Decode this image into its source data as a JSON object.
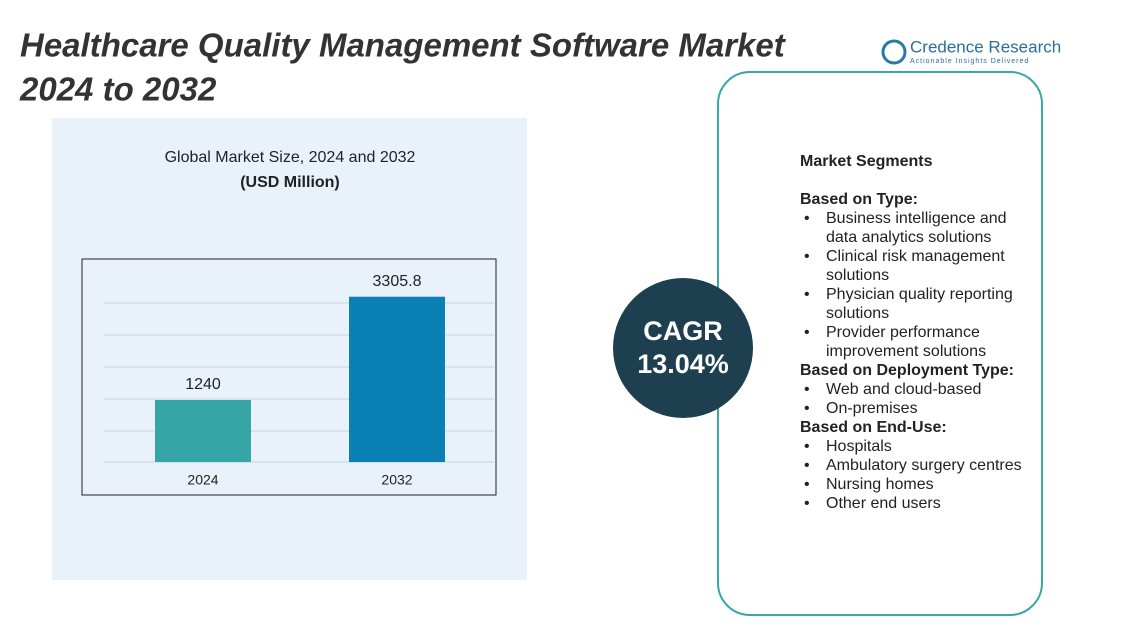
{
  "header": {
    "title_line1": "Healthcare Quality Management Software Market",
    "title_line2": "2024 to 2032"
  },
  "logo": {
    "name": "Credence Research",
    "tagline": "Actionable Insights Delivered"
  },
  "chart_data": {
    "type": "bar",
    "title": "Global Market Size, 2024 and 2032",
    "subtitle": "(USD Million)",
    "categories": [
      "2024",
      "2032"
    ],
    "values": [
      1240,
      3305.8
    ],
    "colors": [
      "#35a5a5",
      "#0a80b5"
    ],
    "ylim": [
      0,
      3800
    ]
  },
  "cagr": {
    "label": "CAGR",
    "value": "13.04%"
  },
  "segments": {
    "title": "Market Segments",
    "groups": [
      {
        "heading": "Based on Type:",
        "items": [
          "Business intelligence and data analytics solutions",
          "Clinical risk management solutions",
          "Physician quality reporting solutions",
          "Provider performance improvement solutions"
        ]
      },
      {
        "heading": "Based on Deployment Type:",
        "items": [
          "Web and cloud-based",
          "On-premises"
        ]
      },
      {
        "heading": "Based on End-Use:",
        "items": [
          "Hospitals",
          "Ambulatory surgery centres",
          "Nursing homes",
          "Other end users"
        ]
      }
    ]
  }
}
